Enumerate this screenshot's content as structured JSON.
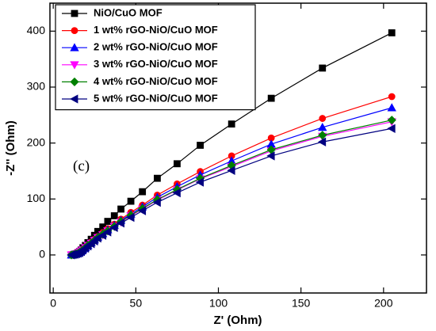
{
  "chart_data": {
    "type": "line",
    "x_label": "Z' (Ohm)",
    "y_label": "-Z'' (Ohm)",
    "annotation": "(c)",
    "xlim": [
      -2,
      226
    ],
    "ylim": [
      -68,
      450
    ],
    "xticks": [
      0,
      50,
      100,
      150,
      200
    ],
    "yticks": [
      0,
      100,
      200,
      300,
      400
    ],
    "legend": "upper left",
    "x": [
      11,
      12,
      13,
      14,
      15,
      16,
      17,
      18,
      19.5,
      21,
      23,
      25,
      27,
      30,
      33,
      37,
      41,
      47,
      54,
      63,
      75,
      89,
      108,
      132,
      163,
      205
    ],
    "series": [
      {
        "name": "NiO/CuO MOF",
        "color": "#000000",
        "marker": "square",
        "values": [
          0,
          0.5,
          1,
          2,
          4,
          6,
          9,
          13,
          17,
          22,
          28,
          35,
          42,
          50,
          60,
          70,
          82,
          96,
          113,
          137,
          163,
          196,
          234,
          280,
          334,
          397
        ]
      },
      {
        "name": "1 wt% rGO-NiO/CuO MOF",
        "color": "#ff0000",
        "marker": "circle",
        "values": [
          0,
          0.5,
          1,
          2,
          3,
          5,
          7,
          10,
          14,
          18,
          23,
          28,
          33,
          40,
          47,
          55,
          64,
          76,
          89,
          107,
          127,
          149,
          177,
          209,
          244,
          283
        ]
      },
      {
        "name": "2 wt% rGO-NiO/CuO MOF",
        "color": "#0000ff",
        "marker": "triangle-up",
        "values": [
          0,
          0.5,
          1,
          2,
          3,
          5,
          7,
          10,
          13,
          17,
          22,
          27,
          32,
          38,
          45,
          53,
          62,
          73,
          86,
          103,
          122,
          143,
          168,
          198,
          228,
          263
        ]
      },
      {
        "name": "3 wt% rGO-NiO/CuO MOF",
        "color": "#ff00ff",
        "marker": "triangle-down",
        "values": [
          0,
          0.5,
          1,
          2,
          3,
          5,
          7,
          9,
          13,
          17,
          21,
          26,
          31,
          36,
          43,
          51,
          59,
          70,
          82,
          98,
          116,
          136,
          158,
          186,
          212,
          238
        ]
      },
      {
        "name": "4 wt% rGO-NiO/CuO MOF",
        "color": "#008000",
        "marker": "diamond",
        "values": [
          0,
          0.5,
          1,
          2,
          3,
          5,
          7,
          9,
          13,
          17,
          21,
          26,
          31,
          37,
          43,
          51,
          60,
          71,
          83,
          99,
          117,
          137,
          160,
          188,
          214,
          241
        ]
      },
      {
        "name": "5 wt% rGO-NiO/CuO MOF",
        "color": "#000080",
        "marker": "triangle-left",
        "values": [
          0,
          0.5,
          1,
          2,
          3,
          4,
          6,
          9,
          12,
          16,
          20,
          25,
          30,
          35,
          41,
          49,
          57,
          67,
          79,
          94,
          111,
          130,
          151,
          177,
          202,
          226
        ]
      }
    ]
  }
}
